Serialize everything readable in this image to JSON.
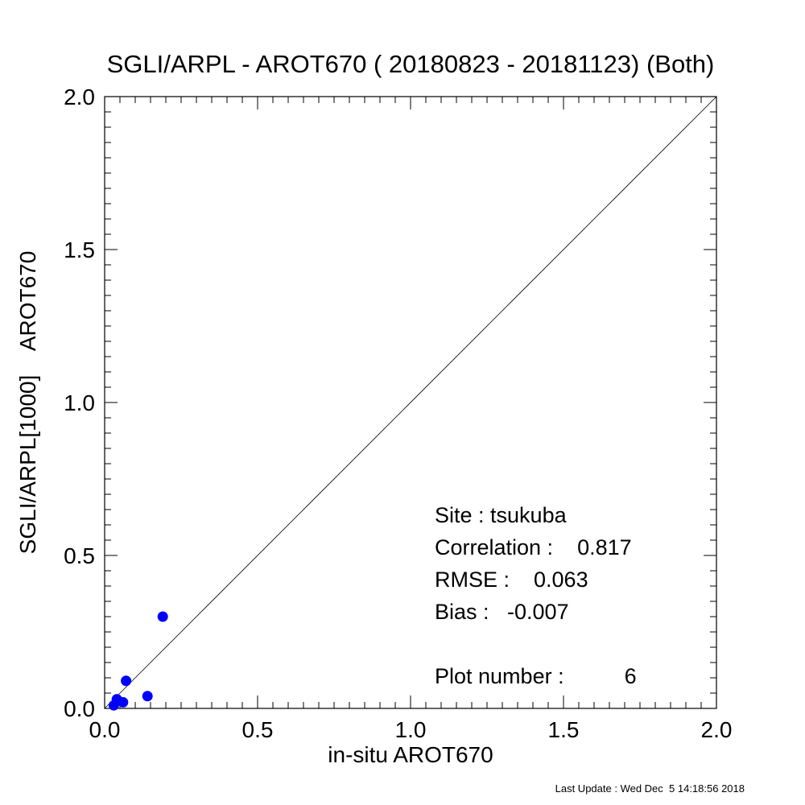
{
  "chart_data": {
    "type": "scatter",
    "title": "SGLI/ARPL - AROT670 ( 20180823 - 20181123) (Both)",
    "xlabel": "in-situ AROT670",
    "ylabel": "SGLI/ARPL[1000]    AROT670",
    "xlim": [
      0.0,
      2.0
    ],
    "ylim": [
      0.0,
      2.0
    ],
    "xticks": [
      "0.0",
      "0.5",
      "1.0",
      "1.5",
      "2.0"
    ],
    "yticks": [
      "0.0",
      "0.5",
      "1.0",
      "1.5",
      "2.0"
    ],
    "grid": false,
    "reference_line": "1:1",
    "point_color": "#0000ff",
    "points": [
      {
        "x": 0.03,
        "y": 0.01
      },
      {
        "x": 0.04,
        "y": 0.03
      },
      {
        "x": 0.06,
        "y": 0.02
      },
      {
        "x": 0.07,
        "y": 0.09
      },
      {
        "x": 0.14,
        "y": 0.04
      },
      {
        "x": 0.19,
        "y": 0.3
      }
    ],
    "stats": {
      "site": "Site : tsukuba",
      "correlation": "Correlation :    0.817",
      "rmse": "RMSE :    0.063",
      "bias": "Bias :   -0.007",
      "plot_number": "Plot number :          6"
    }
  },
  "footer": {
    "last_update": "Last Update : Wed Dec  5 14:18:56 2018"
  }
}
